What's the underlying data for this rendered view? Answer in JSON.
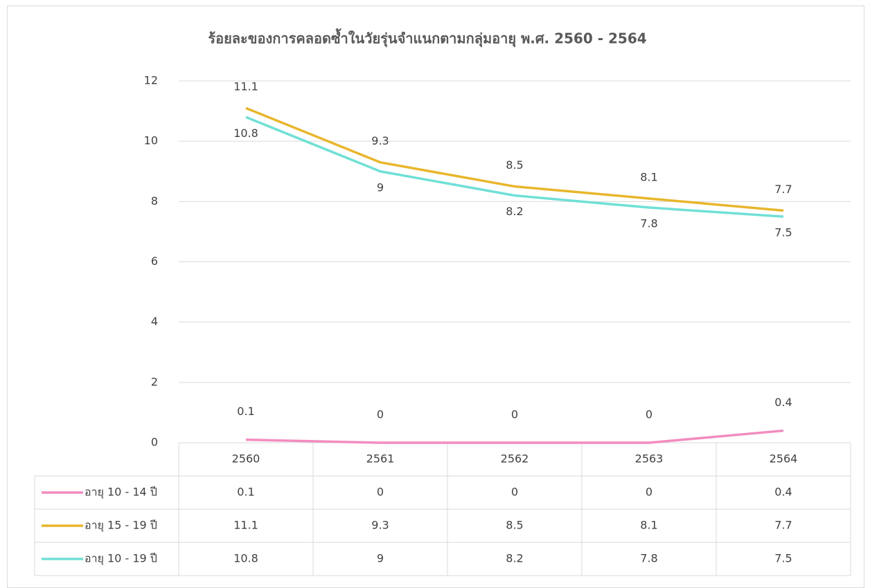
{
  "chart_data": {
    "type": "line",
    "title": "ร้อยละของการคลอดซ้ำในวัยรุ่นจำแนกตามกลุ่มอายุ พ.ศ. 2560 - 2564",
    "categories": [
      "2560",
      "2561",
      "2562",
      "2563",
      "2564"
    ],
    "series": [
      {
        "name": "อายุ 10 - 14 ปี",
        "color": "#f28cc0",
        "values": [
          0.1,
          0,
          0,
          0,
          0.4
        ]
      },
      {
        "name": "อายุ 15 - 19 ปี",
        "color": "#e8b62c",
        "values": [
          11.1,
          9.3,
          8.5,
          8.1,
          7.7
        ]
      },
      {
        "name": "อายุ 10 - 19 ปี",
        "color": "#70e0d6",
        "values": [
          10.8,
          9,
          8.2,
          7.8,
          7.5
        ]
      }
    ],
    "ylim": [
      0,
      12
    ],
    "yticks": [
      0,
      2,
      4,
      6,
      8,
      10,
      12
    ],
    "grid": true,
    "data_table": true
  }
}
